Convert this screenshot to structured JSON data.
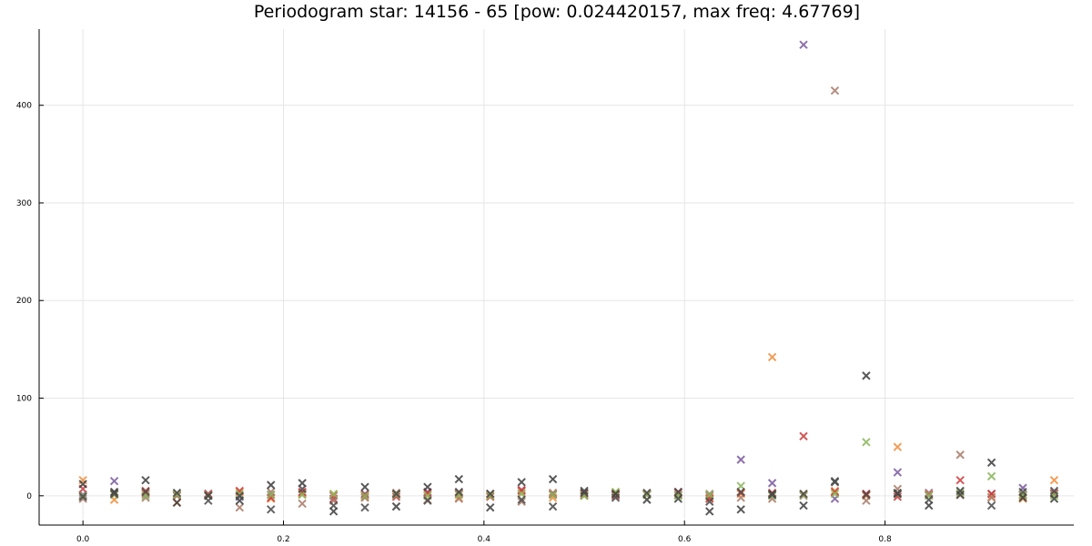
{
  "chart_data": {
    "type": "scatter",
    "title": "Periodogram star: 14156 - 65 [pow: 0.024420157, max freq: 4.67769]",
    "xlabel": "",
    "ylabel": "",
    "xlim": [
      -0.0437,
      0.9883
    ],
    "ylim": [
      -30,
      478
    ],
    "xticks": [
      0.0,
      0.2,
      0.4,
      0.6,
      0.8
    ],
    "xtick_labels": [
      "0.0",
      "0.2",
      "0.4",
      "0.6",
      "0.8"
    ],
    "yticks": [
      0,
      100,
      200,
      300,
      400
    ],
    "ytick_labels": [
      "0",
      "100",
      "200",
      "300",
      "400"
    ],
    "grid": true,
    "legend": "none",
    "marker": "x",
    "x": [
      0.0,
      0.03125,
      0.0625,
      0.09375,
      0.125,
      0.15625,
      0.1875,
      0.21875,
      0.25,
      0.28125,
      0.3125,
      0.34375,
      0.375,
      0.40625,
      0.4375,
      0.46875,
      0.5,
      0.53125,
      0.5625,
      0.59375,
      0.625,
      0.65625,
      0.6875,
      0.71875,
      0.75,
      0.78125,
      0.8125,
      0.84375,
      0.875,
      0.90625,
      0.9375,
      0.96875
    ],
    "series": [
      {
        "color": "#7a5a9e",
        "values": [
          1,
          15,
          2,
          1,
          2,
          -1,
          1,
          3,
          0,
          2,
          1,
          4,
          3,
          2,
          5,
          1,
          2,
          1,
          2,
          3,
          0,
          37,
          13,
          462,
          -3,
          2,
          24,
          3,
          1,
          2,
          8,
          2
        ]
      },
      {
        "color": "#f28d3a",
        "values": [
          16,
          -4,
          3,
          -7,
          1,
          4,
          -3,
          2,
          1,
          -1,
          2,
          1,
          -2,
          0,
          3,
          -2,
          1,
          3,
          2,
          1,
          -2,
          2,
          142,
          2,
          5,
          0,
          50,
          2,
          1,
          -1,
          -3,
          16
        ]
      },
      {
        "color": "#c93d3d",
        "values": [
          7,
          2,
          5,
          0,
          2,
          5,
          -2,
          4,
          -3,
          1,
          -1,
          3,
          2,
          -1,
          6,
          2,
          3,
          0,
          1,
          4,
          -3,
          3,
          3,
          61,
          4,
          2,
          -1,
          1,
          16,
          2,
          1,
          3
        ]
      },
      {
        "color": "#a87a68",
        "values": [
          -3,
          3,
          -2,
          2,
          1,
          -12,
          4,
          -8,
          -5,
          -2,
          3,
          -4,
          -3,
          2,
          -6,
          3,
          0,
          1,
          2,
          1,
          2,
          -2,
          -3,
          0,
          415,
          -5,
          7,
          1,
          42,
          -2,
          0,
          2
        ]
      },
      {
        "color": "#8ab45a",
        "values": [
          0,
          1,
          0,
          1,
          0,
          2,
          1,
          1,
          2,
          0,
          1,
          0,
          1,
          0,
          2,
          1,
          0,
          4,
          1,
          0,
          1,
          10,
          0,
          1,
          2,
          55,
          2,
          0,
          3,
          20,
          1,
          0
        ]
      },
      {
        "color": "#3c3c3c",
        "values": [
          12,
          4,
          16,
          -7,
          0,
          -5,
          11,
          13,
          -16,
          9,
          -11,
          9,
          17,
          -12,
          14,
          17,
          5,
          2,
          -4,
          -3,
          -16,
          -14,
          2,
          -10,
          14,
          123,
          2,
          -10,
          5,
          34,
          -2,
          -3
        ]
      },
      {
        "color": "#4a4a4a",
        "values": [
          -1,
          2,
          4,
          3,
          -5,
          0,
          -14,
          7,
          -10,
          -12,
          2,
          -5,
          4,
          2,
          -4,
          -11,
          3,
          -2,
          3,
          4,
          -6,
          4,
          1,
          2,
          15,
          1,
          3,
          -4,
          1,
          -10,
          4,
          5
        ]
      }
    ]
  }
}
